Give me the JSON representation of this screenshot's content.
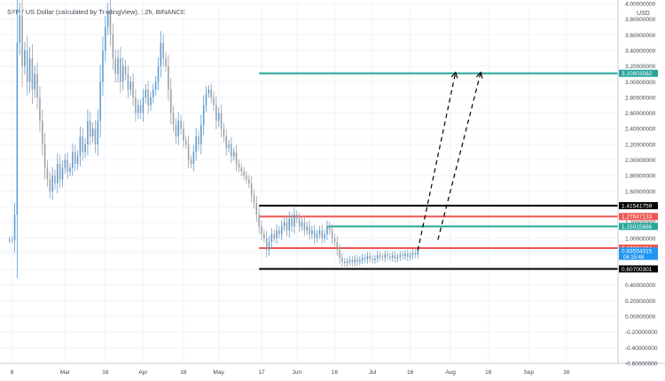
{
  "header": {
    "symbol_title": "SFP / US Dollar (calculated by TradingView), 12h, BINANCE"
  },
  "colors": {
    "candle_up": "#5b9bd5",
    "candle_down": "#9aa0a6",
    "resistance_red": "#ef5350",
    "support_black": "#000000",
    "target_teal": "#26a69a",
    "label_blue": "#2196f3"
  },
  "chart_data": {
    "type": "candlestick",
    "title": "SFP / US Dollar (calculated by TradingView), 12h, BINANCE",
    "price_axis": {
      "unit": "USD",
      "ylim": [
        -0.6,
        4.0
      ],
      "ticks": [
        "4.00000000",
        "3.80000000",
        "3.60000000",
        "3.40000000",
        "3.20000000",
        "3.00000000",
        "2.80000000",
        "2.60000000",
        "2.40000000",
        "2.20000000",
        "2.00000000",
        "1.80000000",
        "1.60000000",
        "1.40000000",
        "1.20000000",
        "1.00000000",
        "0.80000000",
        "0.60000000",
        "0.40000000",
        "0.20000000",
        "0.00000000",
        "-0.20000000",
        "-0.40000000",
        "-0.60000000"
      ],
      "tick_values": [
        4.0,
        3.8,
        3.6,
        3.4,
        3.2,
        3.0,
        2.8,
        2.6,
        2.4,
        2.2,
        2.0,
        1.8,
        1.6,
        1.4,
        1.2,
        1.0,
        0.8,
        0.6,
        0.4,
        0.2,
        0.0,
        -0.2,
        -0.4,
        -0.6
      ]
    },
    "time_axis": {
      "labels": [
        "8",
        "Mar",
        "16",
        "Apr",
        "16",
        "May",
        "17",
        "Jun",
        "16",
        "Jul",
        "16",
        "Aug",
        "16",
        "Sep",
        "16"
      ],
      "label_days": [
        7,
        28,
        44,
        59,
        75,
        89,
        106,
        120,
        135,
        150,
        165,
        181,
        196,
        212,
        227
      ],
      "xlim": [
        5,
        245
      ]
    },
    "price_history": [
      [
        5,
        0.98
      ],
      [
        6,
        0.98
      ],
      [
        7,
        0.97
      ],
      [
        8,
        1.3
      ],
      [
        9,
        3.5
      ],
      [
        10,
        3.85
      ],
      [
        11,
        3.2
      ],
      [
        12,
        3.4
      ],
      [
        13,
        3.0
      ],
      [
        14,
        3.3
      ],
      [
        15,
        2.9
      ],
      [
        16,
        3.1
      ],
      [
        17,
        2.8
      ],
      [
        18,
        2.5
      ],
      [
        19,
        2.2
      ],
      [
        20,
        1.9
      ],
      [
        21,
        1.75
      ],
      [
        22,
        1.6
      ],
      [
        23,
        1.8
      ],
      [
        24,
        1.7
      ],
      [
        25,
        1.95
      ],
      [
        26,
        1.75
      ],
      [
        27,
        1.9
      ],
      [
        28,
        2.0
      ],
      [
        29,
        1.85
      ],
      [
        30,
        1.9
      ],
      [
        31,
        2.1
      ],
      [
        32,
        1.95
      ],
      [
        33,
        2.05
      ],
      [
        34,
        2.3
      ],
      [
        35,
        2.1
      ],
      [
        36,
        2.2
      ],
      [
        37,
        2.5
      ],
      [
        38,
        2.3
      ],
      [
        39,
        2.4
      ],
      [
        40,
        2.2
      ],
      [
        41,
        2.5
      ],
      [
        42,
        3.0
      ],
      [
        43,
        3.4
      ],
      [
        44,
        3.7
      ],
      [
        45,
        3.9
      ],
      [
        46,
        3.6
      ],
      [
        47,
        3.3
      ],
      [
        48,
        3.1
      ],
      [
        49,
        3.3
      ],
      [
        50,
        3.0
      ],
      [
        51,
        3.2
      ],
      [
        52,
        3.1
      ],
      [
        53,
        2.9
      ],
      [
        54,
        3.0
      ],
      [
        55,
        2.8
      ],
      [
        56,
        2.6
      ],
      [
        57,
        2.7
      ],
      [
        58,
        2.6
      ],
      [
        59,
        2.8
      ],
      [
        60,
        2.9
      ],
      [
        61,
        2.7
      ],
      [
        62,
        2.8
      ],
      [
        63,
        2.9
      ],
      [
        64,
        3.0
      ],
      [
        65,
        3.2
      ],
      [
        66,
        3.5
      ],
      [
        67,
        3.3
      ],
      [
        68,
        3.2
      ],
      [
        69,
        2.9
      ],
      [
        70,
        2.6
      ],
      [
        71,
        2.45
      ],
      [
        72,
        2.3
      ],
      [
        73,
        2.5
      ],
      [
        74,
        2.4
      ],
      [
        75,
        2.25
      ],
      [
        76,
        2.2
      ],
      [
        77,
        2.0
      ],
      [
        78,
        1.95
      ],
      [
        79,
        2.1
      ],
      [
        80,
        2.3
      ],
      [
        81,
        2.2
      ],
      [
        82,
        2.45
      ],
      [
        83,
        2.7
      ],
      [
        84,
        2.85
      ],
      [
        85,
        2.9
      ],
      [
        86,
        2.8
      ],
      [
        87,
        2.7
      ],
      [
        88,
        2.5
      ],
      [
        89,
        2.6
      ],
      [
        90,
        2.4
      ],
      [
        91,
        2.3
      ],
      [
        92,
        2.15
      ],
      [
        93,
        2.2
      ],
      [
        94,
        2.05
      ],
      [
        95,
        2.1
      ],
      [
        96,
        1.95
      ],
      [
        97,
        1.9
      ],
      [
        98,
        1.85
      ],
      [
        99,
        1.8
      ],
      [
        100,
        1.75
      ],
      [
        101,
        1.7
      ],
      [
        102,
        1.55
      ],
      [
        103,
        1.45
      ],
      [
        104,
        1.3
      ],
      [
        105,
        1.15
      ],
      [
        106,
        1.05
      ],
      [
        107,
        1.0
      ],
      [
        108,
        0.85
      ],
      [
        109,
        0.95
      ],
      [
        110,
        1.05
      ],
      [
        111,
        1.0
      ],
      [
        112,
        1.1
      ],
      [
        113,
        1.05
      ],
      [
        114,
        1.15
      ],
      [
        115,
        1.2
      ],
      [
        116,
        1.1
      ],
      [
        117,
        1.25
      ],
      [
        118,
        1.15
      ],
      [
        119,
        1.3
      ],
      [
        120,
        1.25
      ],
      [
        121,
        1.15
      ],
      [
        122,
        1.2
      ],
      [
        123,
        1.1
      ],
      [
        124,
        1.15
      ],
      [
        125,
        1.05
      ],
      [
        126,
        1.1
      ],
      [
        127,
        1.0
      ],
      [
        128,
        1.05
      ],
      [
        129,
        1.1
      ],
      [
        130,
        1.0
      ],
      [
        131,
        1.05
      ],
      [
        132,
        1.15
      ],
      [
        133,
        1.1
      ],
      [
        134,
        1.0
      ],
      [
        135,
        0.95
      ],
      [
        136,
        0.85
      ],
      [
        137,
        0.75
      ],
      [
        138,
        0.7
      ],
      [
        139,
        0.68
      ],
      [
        140,
        0.7
      ],
      [
        141,
        0.72
      ],
      [
        142,
        0.69
      ],
      [
        143,
        0.73
      ],
      [
        144,
        0.7
      ],
      [
        145,
        0.72
      ],
      [
        146,
        0.75
      ],
      [
        147,
        0.73
      ],
      [
        148,
        0.77
      ],
      [
        149,
        0.74
      ],
      [
        150,
        0.72
      ],
      [
        151,
        0.74
      ],
      [
        152,
        0.78
      ],
      [
        153,
        0.76
      ],
      [
        154,
        0.75
      ],
      [
        155,
        0.79
      ],
      [
        156,
        0.77
      ],
      [
        157,
        0.75
      ],
      [
        158,
        0.78
      ],
      [
        159,
        0.74
      ],
      [
        160,
        0.76
      ],
      [
        161,
        0.79
      ],
      [
        162,
        0.77
      ],
      [
        163,
        0.8
      ],
      [
        164,
        0.76
      ],
      [
        165,
        0.78
      ],
      [
        166,
        0.81
      ],
      [
        167,
        0.79
      ],
      [
        168,
        0.84
      ]
    ],
    "horizontal_levels": [
      {
        "price": 3.10803562,
        "label": "3.10803562",
        "color": "#26a69a",
        "x_start_day": 105,
        "x_end_day": 245
      },
      {
        "price": 1.41541759,
        "label": "1.41541759",
        "color": "#000000",
        "x_start_day": 105,
        "x_end_day": 245
      },
      {
        "price": 1.27647133,
        "label": "1.27647133",
        "color": "#ef5350",
        "x_start_day": 105,
        "x_end_day": 245
      },
      {
        "price": 1.15015686,
        "label": "1.15015686",
        "color": "#26a69a",
        "x_start_day": 132,
        "x_end_day": 245
      },
      {
        "price": 0.87226404,
        "label": "0.87226404",
        "color": "#ef5350",
        "x_start_day": 105,
        "x_end_day": 245
      },
      {
        "price": 0.60700301,
        "label": "0.60700301",
        "color": "#000000",
        "x_start_day": 105,
        "x_end_day": 245
      }
    ],
    "current_price": {
      "price": 0.83554315,
      "label": "0.83554315",
      "countdown": "04:15:48",
      "color": "#2196f3"
    },
    "projections": [
      {
        "from": [
          168,
          0.84
        ],
        "to": [
          183,
          3.12
        ]
      },
      {
        "from": [
          176,
          0.98
        ],
        "to": [
          193,
          3.12
        ]
      }
    ]
  }
}
